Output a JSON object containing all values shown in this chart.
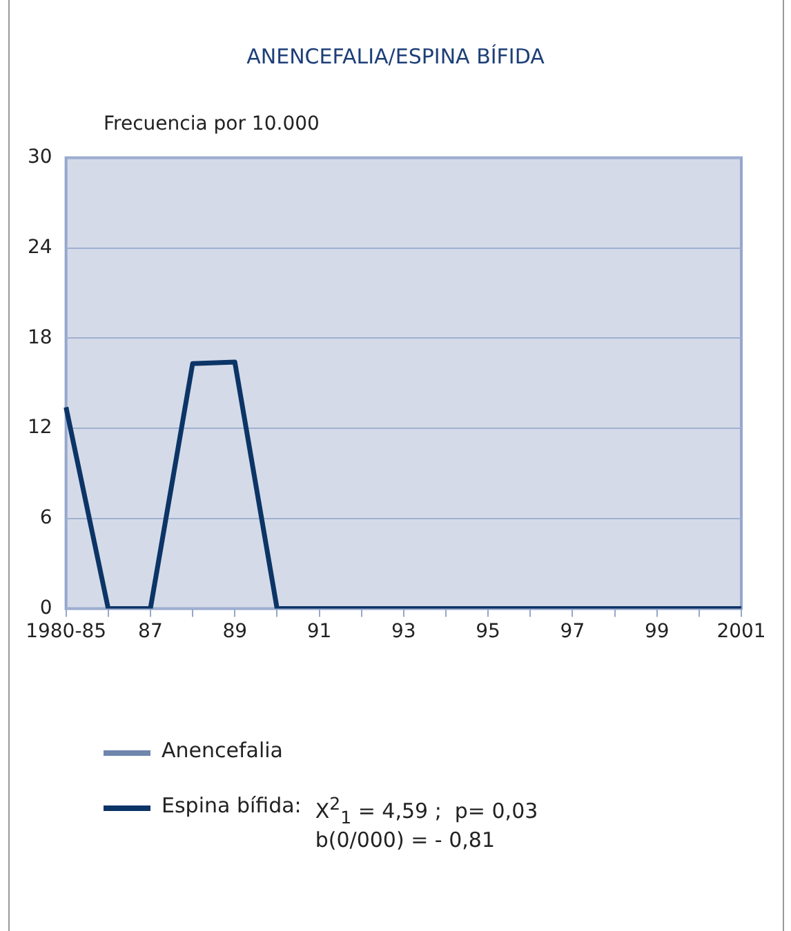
{
  "chart_data": {
    "type": "line",
    "title": "ANENCEFALIA/ESPINA BÍFIDA",
    "ylabel": "Frecuencia por 10.000",
    "categories": [
      "1980-85",
      null,
      "87",
      null,
      "89",
      null,
      "91",
      null,
      "93",
      null,
      "95",
      null,
      "97",
      null,
      "99",
      null,
      "2001"
    ],
    "series": [
      {
        "name": "Anencefalia",
        "color": "#6f86ad",
        "values": [
          null,
          null,
          null,
          null,
          null,
          null,
          null,
          null,
          null,
          null,
          null,
          null,
          null,
          null,
          null,
          null,
          null
        ]
      },
      {
        "name": "Espina bífida:",
        "color": "#0c3466",
        "values": [
          13.4,
          0,
          0,
          16.3,
          16.4,
          0,
          0,
          0,
          0,
          0,
          0,
          0,
          0,
          0,
          0,
          0,
          0
        ]
      }
    ],
    "ylim": [
      0,
      30
    ],
    "yticks": [
      0,
      6,
      12,
      18,
      24,
      30
    ],
    "grid": "y",
    "legend": "bottom",
    "marker": "none",
    "line_style": "solid",
    "annotations": [
      "X$^{2}$$_{1}$ = 4,59 ;  p= 0,03",
      "b(0/000) = - 0,81"
    ]
  }
}
